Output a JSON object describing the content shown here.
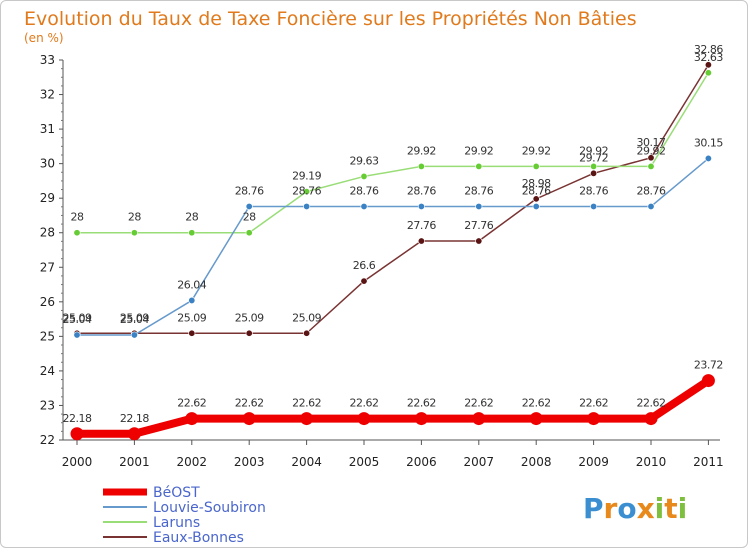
{
  "chart_data": {
    "type": "line",
    "title": "Evolution du Taux de Taxe Foncière sur les Propriétés Non Bâties",
    "unit_label": "(en %)",
    "xlabel": "",
    "ylabel": "",
    "ylim": [
      22,
      33
    ],
    "y_ticks": [
      "22",
      "23",
      "24",
      "25",
      "26",
      "27",
      "28",
      "29",
      "30",
      "31",
      "32",
      "33"
    ],
    "categories": [
      "2000",
      "2001",
      "2002",
      "2003",
      "2004",
      "2005",
      "2006",
      "2007",
      "2008",
      "2009",
      "2010",
      "2011"
    ],
    "grid": false,
    "legend_position": "bottom-left",
    "series": [
      {
        "name": "BéOST",
        "color": "#ee0000",
        "marker_color": "#ee0000",
        "values": [
          22.18,
          22.18,
          22.62,
          22.62,
          22.62,
          22.62,
          22.62,
          22.62,
          22.62,
          22.62,
          22.62,
          23.72
        ],
        "labels": [
          "22.18",
          "22.18",
          "22.62",
          "22.62",
          "22.62",
          "22.62",
          "22.62",
          "22.62",
          "22.62",
          "22.62",
          "22.62",
          "23.72"
        ]
      },
      {
        "name": "Louvie-Soubiron",
        "color": "#6699cc",
        "marker_color": "#3b82c4",
        "values": [
          25.04,
          25.04,
          26.04,
          28.76,
          28.76,
          28.76,
          28.76,
          28.76,
          28.76,
          28.76,
          28.76,
          30.15
        ],
        "labels": [
          "25.04",
          "25.04",
          "26.04",
          "28.76",
          "28.76",
          "28.76",
          "28.76",
          "28.76",
          "28.76",
          "28.76",
          "28.76",
          "30.15"
        ]
      },
      {
        "name": "Laruns",
        "color": "#99dd77",
        "marker_color": "#66cc33",
        "values": [
          28,
          28,
          28,
          28,
          29.19,
          29.63,
          29.92,
          29.92,
          29.92,
          29.92,
          29.92,
          32.63
        ],
        "labels": [
          "28",
          "28",
          "28",
          "28",
          "29.19",
          "29.63",
          "29.92",
          "29.92",
          "29.92",
          "29.92",
          "29.92",
          "32.63"
        ]
      },
      {
        "name": "Eaux-Bonnes",
        "color": "#7a3333",
        "marker_color": "#5a1414",
        "values": [
          25.09,
          25.09,
          25.09,
          25.09,
          25.09,
          26.6,
          27.76,
          27.76,
          28.98,
          29.72,
          30.17,
          32.86
        ],
        "labels": [
          "25.09",
          "25.09",
          "25.09",
          "25.09",
          "25.09",
          "26.6",
          "27.76",
          "27.76",
          "28.98",
          "29.72",
          "30.17",
          "32.86"
        ]
      }
    ]
  },
  "logo": {
    "text": "Proxiti"
  }
}
